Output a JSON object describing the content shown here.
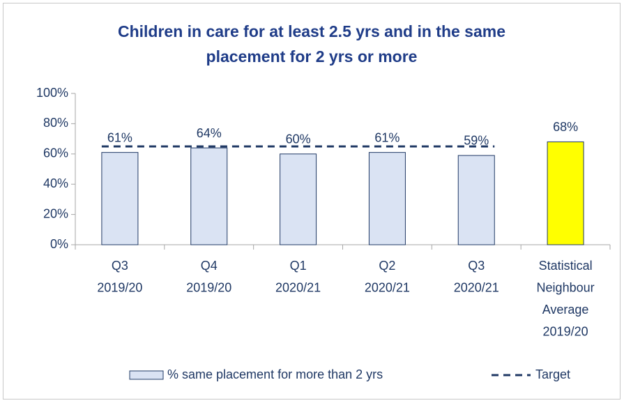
{
  "chart_data": {
    "type": "bar",
    "title": [
      "Children in care for at least 2.5 yrs and in the same",
      "placement for 2 yrs or more"
    ],
    "categories": [
      [
        "Q3",
        "2019/20"
      ],
      [
        "Q4",
        "2019/20"
      ],
      [
        "Q1",
        "2020/21"
      ],
      [
        "Q2",
        "2020/21"
      ],
      [
        "Q3",
        "2020/21"
      ],
      [
        "Statistical",
        "Neighbour",
        "Average",
        "2019/20"
      ]
    ],
    "series": [
      {
        "name": "% same placement for more than 2 yrs",
        "type": "bar",
        "values": [
          61,
          64,
          60,
          61,
          59,
          68
        ],
        "value_labels": [
          "61%",
          "64%",
          "60%",
          "61%",
          "59%",
          "68%"
        ],
        "colors": [
          "#dae3f3",
          "#dae3f3",
          "#dae3f3",
          "#dae3f3",
          "#dae3f3",
          "#ffff00"
        ],
        "edge_color": "#1f3864"
      },
      {
        "name": "Target",
        "type": "line",
        "dashed": true,
        "color": "#1f3864",
        "values": [
          65,
          65,
          65,
          65,
          65,
          null
        ]
      }
    ],
    "ylim": [
      0,
      100
    ],
    "yticks": [
      {
        "value": 0,
        "label": "0%"
      },
      {
        "value": 20,
        "label": "20%"
      },
      {
        "value": 40,
        "label": "40%"
      },
      {
        "value": 60,
        "label": "60%"
      },
      {
        "value": 80,
        "label": "80%"
      },
      {
        "value": 100,
        "label": "100%"
      }
    ],
    "grid": false,
    "legend": "bottom"
  }
}
